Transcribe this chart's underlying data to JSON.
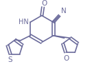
{
  "bg_color": "#ffffff",
  "line_color": "#6b6b9b",
  "lw": 1.2,
  "figsize": [
    1.34,
    0.93
  ],
  "dpi": 100,
  "xlim": [
    0,
    134
  ],
  "ylim": [
    0,
    93
  ]
}
